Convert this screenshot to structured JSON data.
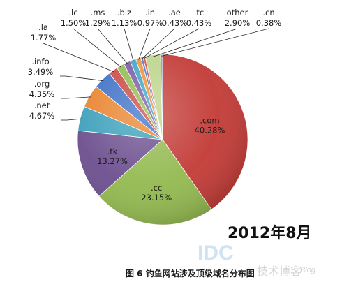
{
  "chart_data": {
    "type": "pie",
    "slices": [
      {
        "label": ".com",
        "value": 40.28,
        "color": "#c23a36",
        "text_color": "#ffffff"
      },
      {
        "label": ".cc",
        "value": 23.15,
        "color": "#93b94f",
        "text_color": "#1a1a1a"
      },
      {
        "label": ".tk",
        "value": 13.27,
        "color": "#6b4e8e",
        "text_color": "#1a1a1a"
      },
      {
        "label": ".net",
        "value": 4.67,
        "color": "#3a9fb9",
        "text_color": "#1a1a1a"
      },
      {
        "label": ".org",
        "value": 4.35,
        "color": "#e9822b",
        "text_color": "#1a1a1a"
      },
      {
        "label": ".info",
        "value": 3.49,
        "color": "#3b6fc5",
        "text_color": "#1a1a1a"
      },
      {
        "label": ".la",
        "value": 1.77,
        "color": "#c84743",
        "text_color": "#1a1a1a"
      },
      {
        "label": ".lc",
        "value": 1.5,
        "color": "#8fbb4e",
        "text_color": "#1a1a1a"
      },
      {
        "label": ".ms",
        "value": 1.29,
        "color": "#7a58a3",
        "text_color": "#1a1a1a"
      },
      {
        "label": ".biz",
        "value": 1.13,
        "color": "#3aa6c4",
        "text_color": "#1a1a1a"
      },
      {
        "label": ".in",
        "value": 0.97,
        "color": "#f0903a",
        "text_color": "#1a1a1a"
      },
      {
        "label": ".ae",
        "value": 0.43,
        "color": "#4a7bc9",
        "text_color": "#1a1a1a"
      },
      {
        "label": ".tc",
        "value": 0.43,
        "color": "#d05653",
        "text_color": "#1a1a1a"
      },
      {
        "label": "other",
        "value": 2.9,
        "color": "#bcd48a",
        "text_color": "#1a1a1a"
      },
      {
        "label": ".cn",
        "value": 0.38,
        "color": "#a58cc4",
        "text_color": "#1a1a1a"
      }
    ],
    "value_suffix": "%"
  },
  "date_label": "2012年8月",
  "caption": "图 6  钓鱼网站涉及顶级域名分布图",
  "watermark": {
    "brand": "IDC",
    "chinese": "技术博客",
    "blog": "Blog"
  }
}
